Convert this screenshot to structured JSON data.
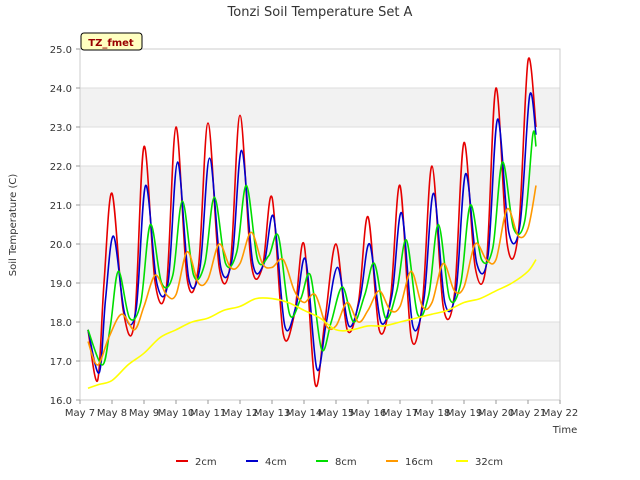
{
  "chart_data": {
    "type": "line",
    "title": "Tonzi Soil Temperature Set A",
    "xlabel": "Time",
    "ylabel": "Soil Temperature (C)",
    "ylim": [
      16.0,
      25.0
    ],
    "xlim": [
      0,
      15
    ],
    "yticks": [
      "16.0",
      "17.0",
      "18.0",
      "19.0",
      "20.0",
      "21.0",
      "22.0",
      "23.0",
      "24.0",
      "25.0"
    ],
    "xticks": [
      "May 7",
      "May 8",
      "May 9",
      "May 10",
      "May 11",
      "May 12",
      "May 13",
      "May 14",
      "May 15",
      "May 16",
      "May 17",
      "May 18",
      "May 19",
      "May 20",
      "May 21",
      "May 22"
    ],
    "grid": true,
    "legend_position": "bottom",
    "annotation": "TZ_fmet",
    "series": [
      {
        "name": "2cm",
        "color": "#e60000",
        "x": [
          0.25,
          0.55,
          0.75,
          1.0,
          1.35,
          1.7,
          2.0,
          2.35,
          2.7,
          3.0,
          3.35,
          3.7,
          4.0,
          4.35,
          4.7,
          5.0,
          5.35,
          5.7,
          6.0,
          6.35,
          6.7,
          7.0,
          7.35,
          7.65,
          8.0,
          8.35,
          8.7,
          9.0,
          9.35,
          9.7,
          10.0,
          10.35,
          10.7,
          11.0,
          11.35,
          11.7,
          12.0,
          12.35,
          12.7,
          13.0,
          13.35,
          13.7,
          14.0,
          14.25
        ],
        "y": [
          17.8,
          16.5,
          19.0,
          21.3,
          18.3,
          18.0,
          22.5,
          19.0,
          18.9,
          23.0,
          19.1,
          19.4,
          23.1,
          19.4,
          19.5,
          23.3,
          19.5,
          19.4,
          21.2,
          17.7,
          18.2,
          20.0,
          16.4,
          18.0,
          20.0,
          17.8,
          18.5,
          20.7,
          17.8,
          18.6,
          21.5,
          17.6,
          18.5,
          22.0,
          18.4,
          18.7,
          22.6,
          19.4,
          19.5,
          24.0,
          20.0,
          20.3,
          24.7,
          23.0
        ]
      },
      {
        "name": "4cm",
        "color": "#0000cc",
        "x": [
          0.25,
          0.6,
          0.8,
          1.05,
          1.4,
          1.75,
          2.05,
          2.4,
          2.75,
          3.05,
          3.4,
          3.75,
          4.05,
          4.4,
          4.75,
          5.05,
          5.4,
          5.75,
          6.05,
          6.4,
          6.75,
          7.05,
          7.4,
          7.7,
          8.05,
          8.4,
          8.75,
          9.05,
          9.4,
          9.75,
          10.05,
          10.4,
          10.75,
          11.05,
          11.4,
          11.75,
          12.05,
          12.4,
          12.75,
          13.05,
          13.4,
          13.75,
          14.05,
          14.25
        ],
        "y": [
          17.8,
          16.7,
          18.6,
          20.2,
          18.2,
          18.3,
          21.5,
          19.0,
          19.0,
          22.1,
          19.1,
          19.4,
          22.2,
          19.4,
          19.6,
          22.4,
          19.5,
          19.5,
          20.7,
          17.9,
          18.4,
          19.6,
          16.8,
          18.0,
          19.4,
          17.9,
          18.6,
          20.0,
          18.0,
          18.7,
          20.8,
          17.9,
          18.6,
          21.3,
          18.5,
          18.8,
          21.8,
          19.5,
          19.7,
          23.2,
          20.3,
          20.5,
          23.8,
          22.8
        ]
      },
      {
        "name": "8cm",
        "color": "#00dd00",
        "x": [
          0.25,
          0.7,
          0.95,
          1.2,
          1.55,
          1.9,
          2.2,
          2.55,
          2.9,
          3.2,
          3.55,
          3.9,
          4.2,
          4.55,
          4.9,
          5.2,
          5.55,
          5.9,
          6.2,
          6.55,
          6.9,
          7.2,
          7.55,
          7.85,
          8.2,
          8.55,
          8.9,
          9.2,
          9.55,
          9.9,
          10.2,
          10.55,
          10.9,
          11.2,
          11.55,
          11.9,
          12.2,
          12.55,
          12.9,
          13.2,
          13.55,
          13.9,
          14.15,
          14.25
        ],
        "y": [
          17.8,
          16.9,
          17.9,
          19.3,
          18.1,
          18.5,
          20.5,
          19.0,
          19.2,
          21.1,
          19.2,
          19.5,
          21.2,
          19.5,
          19.8,
          21.5,
          19.6,
          19.7,
          20.2,
          18.2,
          18.6,
          19.2,
          17.3,
          18.0,
          18.9,
          18.0,
          18.7,
          19.5,
          18.1,
          18.8,
          20.1,
          18.2,
          18.7,
          20.5,
          18.6,
          19.0,
          21.0,
          19.6,
          19.9,
          22.1,
          20.4,
          20.6,
          22.8,
          22.5
        ]
      },
      {
        "name": "16cm",
        "color": "#ff9900",
        "x": [
          0.25,
          0.55,
          0.9,
          1.3,
          1.7,
          2.0,
          2.35,
          2.7,
          3.0,
          3.35,
          3.7,
          4.0,
          4.35,
          4.7,
          5.0,
          5.35,
          5.7,
          6.0,
          6.35,
          6.7,
          7.0,
          7.35,
          7.7,
          8.0,
          8.35,
          8.7,
          9.0,
          9.35,
          9.7,
          10.0,
          10.35,
          10.7,
          11.0,
          11.35,
          11.7,
          12.0,
          12.35,
          12.7,
          13.0,
          13.35,
          13.7,
          14.0,
          14.25
        ],
        "y": [
          17.5,
          16.9,
          17.6,
          18.2,
          17.8,
          18.4,
          19.2,
          18.7,
          18.7,
          19.8,
          19.0,
          19.1,
          20.0,
          19.4,
          19.5,
          20.3,
          19.5,
          19.4,
          19.6,
          18.8,
          18.5,
          18.7,
          17.9,
          17.9,
          18.5,
          18.0,
          18.3,
          18.8,
          18.3,
          18.4,
          19.3,
          18.4,
          18.5,
          19.5,
          18.8,
          18.9,
          20.0,
          19.6,
          19.6,
          20.9,
          20.2,
          20.4,
          21.5
        ]
      },
      {
        "name": "32cm",
        "color": "#ffff00",
        "x": [
          0.25,
          0.6,
          1.0,
          1.5,
          2.0,
          2.5,
          3.0,
          3.5,
          4.0,
          4.5,
          5.0,
          5.5,
          6.0,
          6.5,
          7.0,
          7.5,
          8.0,
          8.5,
          9.0,
          9.5,
          10.0,
          10.5,
          11.0,
          11.5,
          12.0,
          12.5,
          13.0,
          13.5,
          14.0,
          14.25
        ],
        "y": [
          16.3,
          16.4,
          16.5,
          16.9,
          17.2,
          17.6,
          17.8,
          18.0,
          18.1,
          18.3,
          18.4,
          18.6,
          18.6,
          18.5,
          18.3,
          18.1,
          17.8,
          17.8,
          17.9,
          17.9,
          18.0,
          18.1,
          18.2,
          18.3,
          18.5,
          18.6,
          18.8,
          19.0,
          19.3,
          19.6
        ]
      }
    ]
  }
}
